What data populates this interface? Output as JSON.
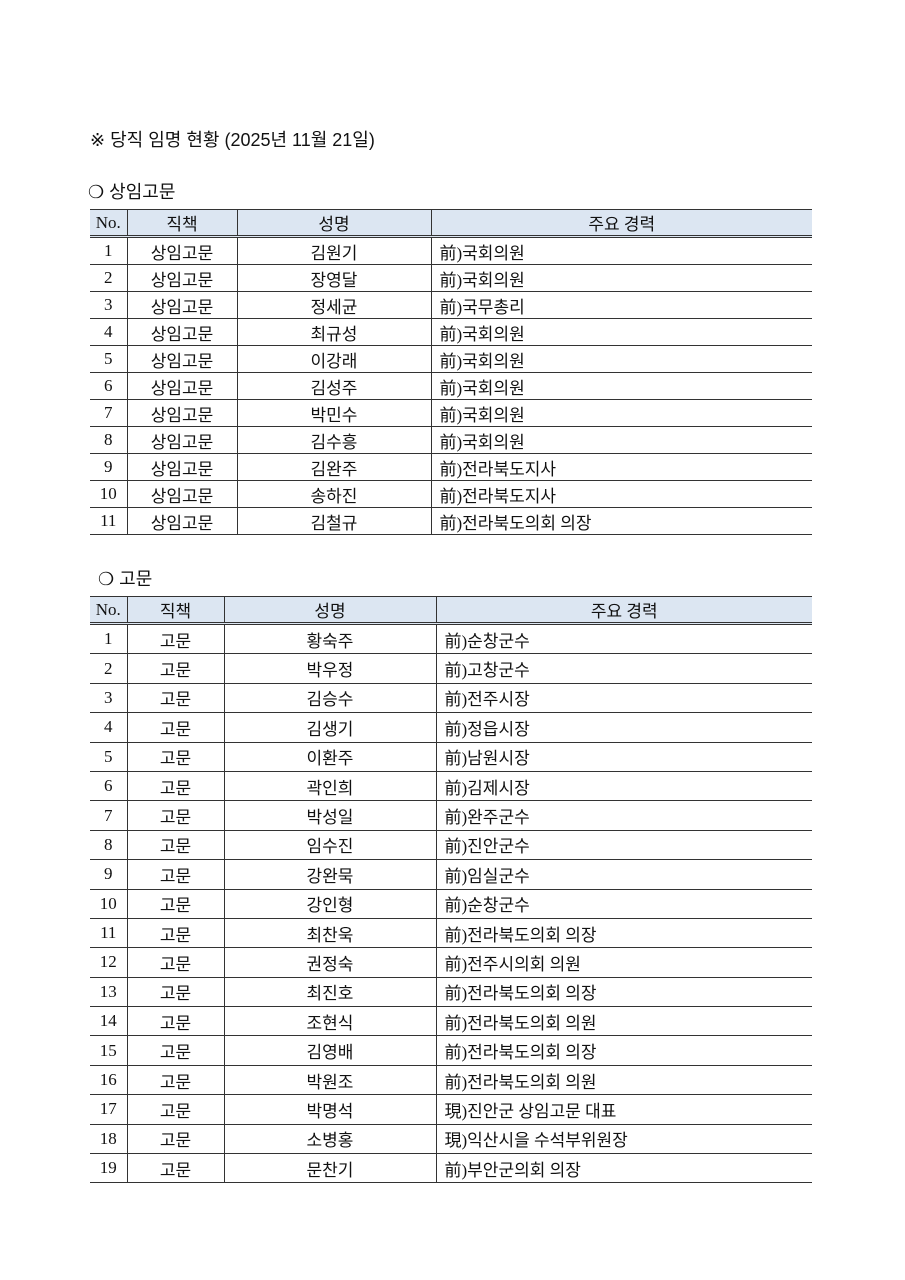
{
  "title": "※ 당직 임명 현황 (2025년 11월 21일)",
  "sections": [
    {
      "heading": "❍ 상임고문",
      "headers": [
        "No.",
        "직책",
        "성명",
        "주요 경력"
      ],
      "rows": [
        [
          "1",
          "상임고문",
          "김원기",
          "前)국회의원"
        ],
        [
          "2",
          "상임고문",
          "장영달",
          "前)국회의원"
        ],
        [
          "3",
          "상임고문",
          "정세균",
          "前)국무총리"
        ],
        [
          "4",
          "상임고문",
          "최규성",
          "前)국회의원"
        ],
        [
          "5",
          "상임고문",
          "이강래",
          "前)국회의원"
        ],
        [
          "6",
          "상임고문",
          "김성주",
          "前)국회의원"
        ],
        [
          "7",
          "상임고문",
          "박민수",
          "前)국회의원"
        ],
        [
          "8",
          "상임고문",
          "김수흥",
          "前)국회의원"
        ],
        [
          "9",
          "상임고문",
          "김완주",
          "前)전라북도지사"
        ],
        [
          "10",
          "상임고문",
          "송하진",
          "前)전라북도지사"
        ],
        [
          "11",
          "상임고문",
          "김철규",
          "前)전라북도의회 의장"
        ]
      ]
    },
    {
      "heading": "❍ 고문",
      "headers": [
        "No.",
        "직책",
        "성명",
        "주요 경력"
      ],
      "rows": [
        [
          "1",
          "고문",
          "황숙주",
          "前)순창군수"
        ],
        [
          "2",
          "고문",
          "박우정",
          "前)고창군수"
        ],
        [
          "3",
          "고문",
          "김승수",
          "前)전주시장"
        ],
        [
          "4",
          "고문",
          "김생기",
          "前)정읍시장"
        ],
        [
          "5",
          "고문",
          "이환주",
          "前)남원시장"
        ],
        [
          "6",
          "고문",
          "곽인희",
          "前)김제시장"
        ],
        [
          "7",
          "고문",
          "박성일",
          "前)완주군수"
        ],
        [
          "8",
          "고문",
          "임수진",
          "前)진안군수"
        ],
        [
          "9",
          "고문",
          "강완묵",
          "前)임실군수"
        ],
        [
          "10",
          "고문",
          "강인형",
          "前)순창군수"
        ],
        [
          "11",
          "고문",
          "최찬욱",
          "前)전라북도의회 의장"
        ],
        [
          "12",
          "고문",
          "권정숙",
          "前)전주시의회 의원"
        ],
        [
          "13",
          "고문",
          "최진호",
          "前)전라북도의회 의장"
        ],
        [
          "14",
          "고문",
          "조현식",
          "前)전라북도의회 의원"
        ],
        [
          "15",
          "고문",
          "김영배",
          "前)전라북도의회 의장"
        ],
        [
          "16",
          "고문",
          "박원조",
          "前)전라북도의회 의원"
        ],
        [
          "17",
          "고문",
          "박명석",
          "現)진안군 상임고문 대표"
        ],
        [
          "18",
          "고문",
          "소병홍",
          "現)익산시을 수석부위원장"
        ],
        [
          "19",
          "고문",
          "문찬기",
          "前)부안군의회 의장"
        ]
      ]
    }
  ]
}
